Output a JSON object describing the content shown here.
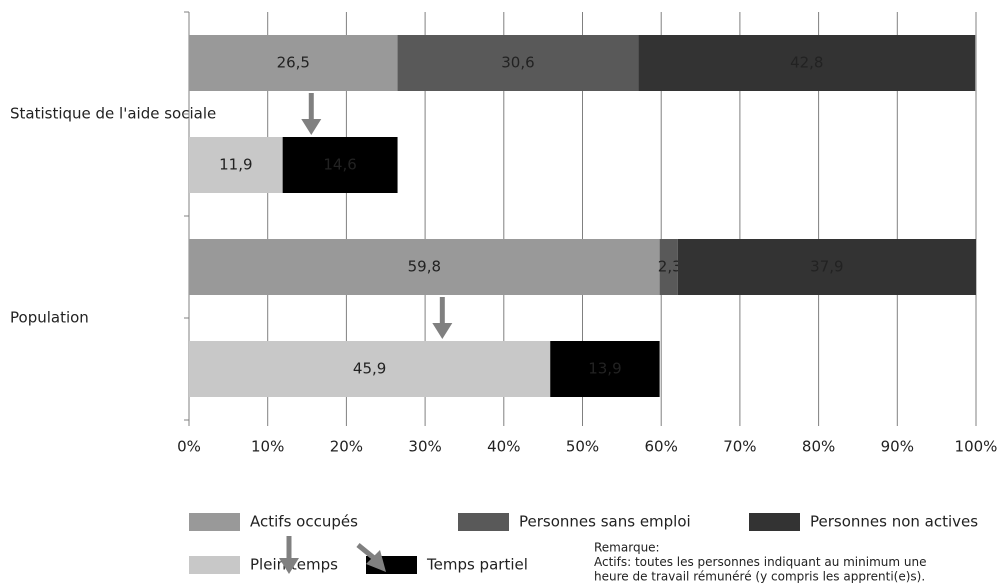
{
  "chart_data": {
    "type": "stacked-barh",
    "categories": [
      "Statistique de l'aide sociale",
      null,
      "Population",
      null
    ],
    "series": [
      {
        "name": "Actifs occupés",
        "color": "#999999",
        "values": [
          26.5,
          null,
          59.8,
          null
        ],
        "value_labels": [
          "26,5",
          null,
          "59,8",
          null
        ]
      },
      {
        "name": "Personnes sans emploi",
        "color": "#595959",
        "values": [
          30.6,
          null,
          2.3,
          null
        ],
        "value_labels": [
          "30,6",
          null,
          "2,3",
          null
        ]
      },
      {
        "name": "Personnes non actives",
        "color": "#333333",
        "values": [
          42.8,
          null,
          37.9,
          null
        ],
        "value_labels": [
          "42,8",
          null,
          "37,9",
          null
        ]
      },
      {
        "name": "Plein temps",
        "color": "#c8c8c8",
        "values": [
          null,
          11.9,
          null,
          45.9
        ],
        "value_labels": [
          null,
          "11,9",
          null,
          "45,9"
        ]
      },
      {
        "name": "Temps partiel",
        "color": "#000000",
        "values": [
          null,
          14.6,
          null,
          13.9
        ],
        "value_labels": [
          null,
          "14,6",
          null,
          "13,9"
        ]
      }
    ],
    "xlim": [
      0,
      100
    ],
    "xticks": [
      {
        "value": 0,
        "label": "0%"
      },
      {
        "value": 10,
        "label": "10%"
      },
      {
        "value": 20,
        "label": "20%"
      },
      {
        "value": 30,
        "label": "30%"
      },
      {
        "value": 40,
        "label": "40%"
      },
      {
        "value": 50,
        "label": "50%"
      },
      {
        "value": 60,
        "label": "60%"
      },
      {
        "value": 70,
        "label": "70%"
      },
      {
        "value": 80,
        "label": "80%"
      },
      {
        "value": 90,
        "label": "90%"
      },
      {
        "value": 100,
        "label": "100%"
      }
    ],
    "grid": true,
    "note": [
      "Remarque:",
      "Actifs: toutes les personnes indiquant au minimum une",
      "heure de travail rémunéré (y compris les apprenti(e)s)."
    ]
  }
}
